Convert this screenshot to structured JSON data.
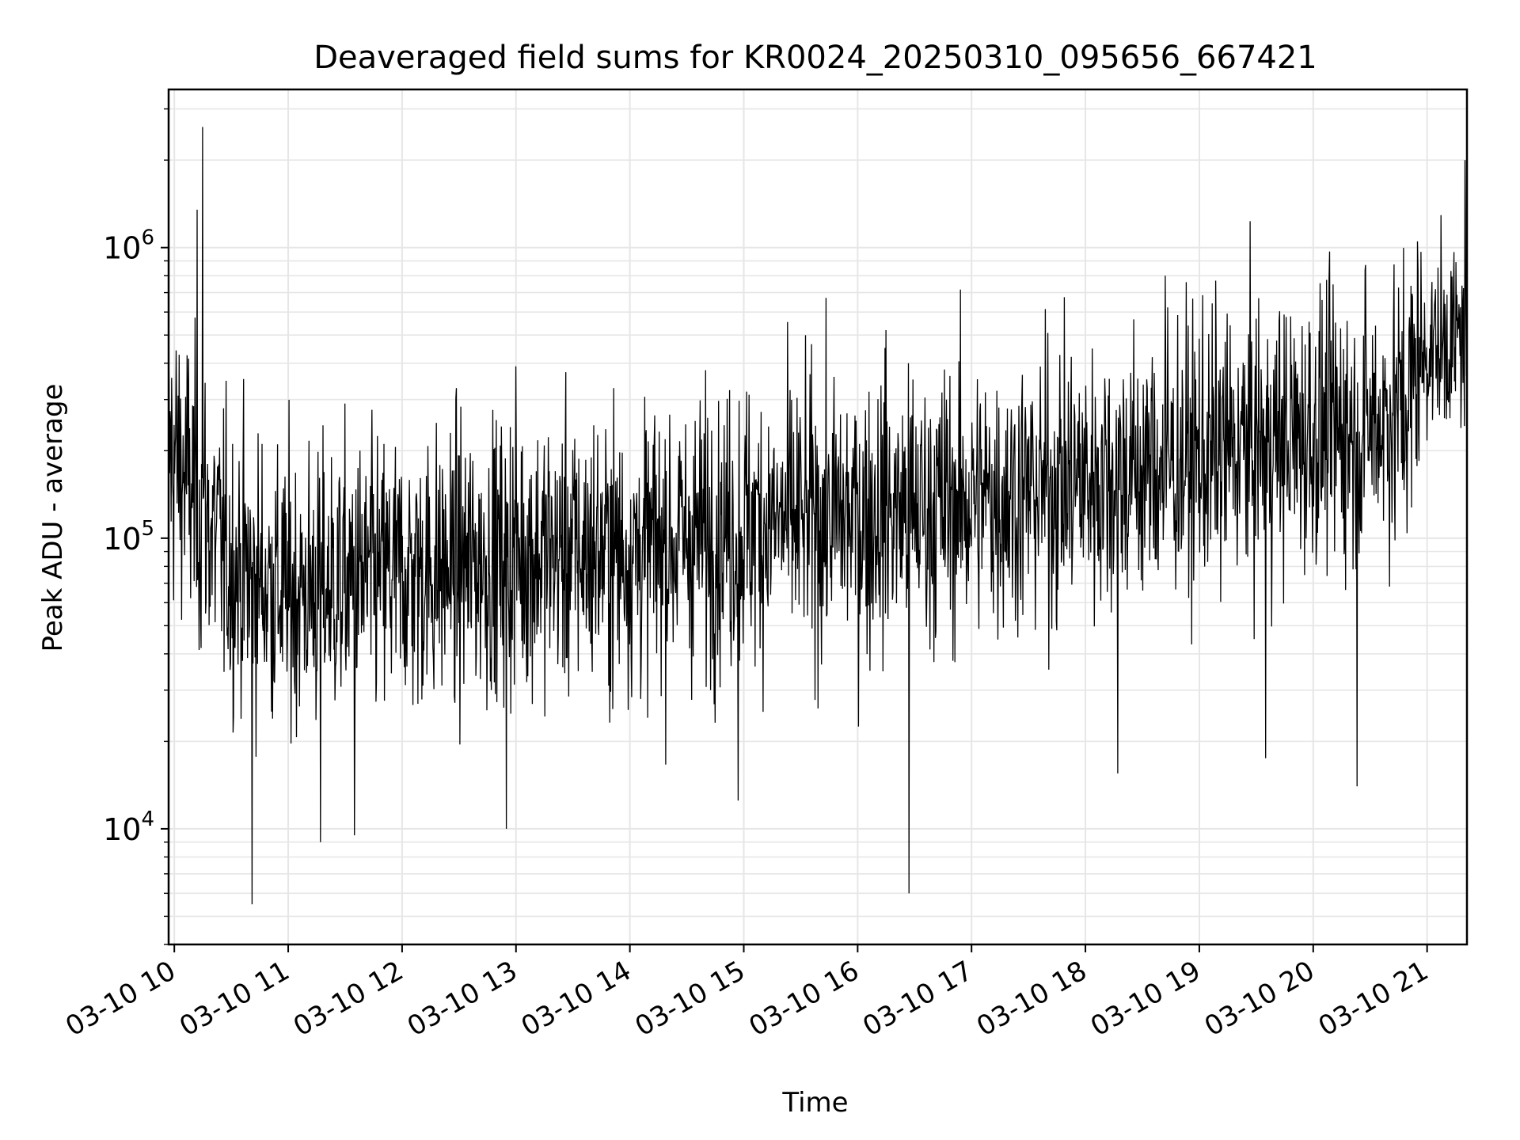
{
  "chart_data": {
    "type": "line",
    "title": "Deaveraged field sums for KR0024_20250310_095656_667421",
    "xlabel": "Time",
    "ylabel": "Peak ADU - average",
    "yscale": "log",
    "ylim": [
      4000,
      3500000
    ],
    "xlim": [
      "2025-03-10 09:57",
      "2025-03-10 21:21"
    ],
    "x_tick_labels": [
      "03-10 10",
      "03-10 11",
      "03-10 12",
      "03-10 13",
      "03-10 14",
      "03-10 15",
      "03-10 16",
      "03-10 17",
      "03-10 18",
      "03-10 19",
      "03-10 20",
      "03-10 21"
    ],
    "y_tick_labels": [
      {
        "base": "10",
        "exp": "4",
        "value": 10000
      },
      {
        "base": "10",
        "exp": "5",
        "value": 100000
      },
      {
        "base": "10",
        "exp": "6",
        "value": 1000000
      }
    ],
    "grid": true,
    "legend": "none",
    "line_color": "#000000",
    "grid_color": "#e6e6e6",
    "series": [
      {
        "x_hours": [
          9.95,
          10.0,
          10.5,
          11.0,
          11.5,
          12.0,
          12.5,
          13.0,
          13.5,
          14.0,
          14.5,
          15.0,
          15.5,
          16.0,
          16.5,
          17.0,
          17.5,
          18.0,
          18.5,
          19.0,
          19.5,
          20.0,
          20.5,
          20.8,
          21.0,
          21.35
        ],
        "typical_values": [
          200000,
          190000,
          80000,
          65000,
          70000,
          75000,
          80000,
          88000,
          90000,
          90000,
          100000,
          110000,
          115000,
          120000,
          125000,
          135000,
          145000,
          160000,
          170000,
          190000,
          210000,
          230000,
          250000,
          280000,
          450000,
          500000
        ],
        "spikes": [
          {
            "x": "10:15",
            "y": 2600000
          },
          {
            "x": "10:12",
            "y": 1350000
          },
          {
            "x": "10:41",
            "y": 5500
          },
          {
            "x": "11:17",
            "y": 9000
          },
          {
            "x": "11:35",
            "y": 9500
          },
          {
            "x": "12:55",
            "y": 10000
          },
          {
            "x": "13:00",
            "y": 390000
          },
          {
            "x": "14:57",
            "y": 12500
          },
          {
            "x": "16:15",
            "y": 520000
          },
          {
            "x": "16:27",
            "y": 6000
          },
          {
            "x": "18:17",
            "y": 15500
          },
          {
            "x": "18:42",
            "y": 800000
          },
          {
            "x": "19:35",
            "y": 17500
          },
          {
            "x": "20:23",
            "y": 14000
          },
          {
            "x": "20:55",
            "y": 1050000
          },
          {
            "x": "21:20",
            "y": 2000000
          }
        ]
      }
    ]
  }
}
